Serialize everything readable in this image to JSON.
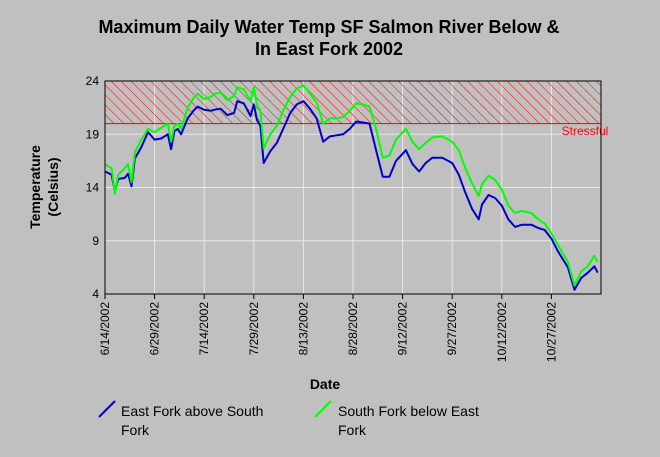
{
  "chart_data": {
    "type": "line",
    "title_line1": "Maximum Daily Water Temp SF Salmon River Below &",
    "title_line2": "In East Fork 2002",
    "xlabel": "Date",
    "ylabel_line1": "Temperature",
    "ylabel_line2": "(Celsius)",
    "ylim": [
      4,
      24
    ],
    "yticks": [
      4,
      9,
      14,
      19,
      24
    ],
    "xlim": [
      "2002-06-14",
      "2002-11-11"
    ],
    "xtick_labels": [
      "6/14/2002",
      "6/29/2002",
      "7/14/2002",
      "7/29/2002",
      "8/13/2002",
      "8/28/2002",
      "9/12/2002",
      "9/27/2002",
      "10/12/2002",
      "10/27/2002"
    ],
    "xtick_dates": [
      "2002-06-14",
      "2002-06-29",
      "2002-07-14",
      "2002-07-29",
      "2002-08-13",
      "2002-08-28",
      "2002-09-12",
      "2002-09-27",
      "2002-10-12",
      "2002-10-27"
    ],
    "grid": true,
    "legend_position": "bottom",
    "threshold": {
      "label": "Stressful",
      "from": 20,
      "to": 24,
      "color": "#ff0000"
    },
    "series": [
      {
        "name": "East Fork above South Fork",
        "color": "#0000cc",
        "values": [
          [
            "2002-06-14",
            15.5
          ],
          [
            "2002-06-16",
            15.2
          ],
          [
            "2002-06-17",
            13.6
          ],
          [
            "2002-06-18",
            14.8
          ],
          [
            "2002-06-20",
            14.9
          ],
          [
            "2002-06-21",
            15.3
          ],
          [
            "2002-06-22",
            14.1
          ],
          [
            "2002-06-23",
            16.7
          ],
          [
            "2002-06-25",
            17.8
          ],
          [
            "2002-06-27",
            19.2
          ],
          [
            "2002-06-29",
            18.5
          ],
          [
            "2002-07-01",
            18.6
          ],
          [
            "2002-07-03",
            19.0
          ],
          [
            "2002-07-04",
            17.6
          ],
          [
            "2002-07-05",
            19.3
          ],
          [
            "2002-07-06",
            19.5
          ],
          [
            "2002-07-07",
            19.0
          ],
          [
            "2002-07-09",
            20.5
          ],
          [
            "2002-07-11",
            21.3
          ],
          [
            "2002-07-12",
            21.6
          ],
          [
            "2002-07-14",
            21.3
          ],
          [
            "2002-07-16",
            21.2
          ],
          [
            "2002-07-17",
            21.3
          ],
          [
            "2002-07-19",
            21.4
          ],
          [
            "2002-07-21",
            20.8
          ],
          [
            "2002-07-23",
            21.0
          ],
          [
            "2002-07-24",
            22.1
          ],
          [
            "2002-07-26",
            21.9
          ],
          [
            "2002-07-28",
            20.7
          ],
          [
            "2002-07-29",
            21.8
          ],
          [
            "2002-07-30",
            20.3
          ],
          [
            "2002-07-31",
            19.8
          ],
          [
            "2002-08-01",
            16.3
          ],
          [
            "2002-08-03",
            17.4
          ],
          [
            "2002-08-05",
            18.2
          ],
          [
            "2002-08-07",
            19.6
          ],
          [
            "2002-08-09",
            21.0
          ],
          [
            "2002-08-11",
            21.8
          ],
          [
            "2002-08-13",
            22.1
          ],
          [
            "2002-08-15",
            21.4
          ],
          [
            "2002-08-17",
            20.5
          ],
          [
            "2002-08-19",
            18.3
          ],
          [
            "2002-08-21",
            18.8
          ],
          [
            "2002-08-23",
            18.9
          ],
          [
            "2002-08-25",
            19.0
          ],
          [
            "2002-08-27",
            19.5
          ],
          [
            "2002-08-29",
            20.2
          ],
          [
            "2002-08-31",
            20.1
          ],
          [
            "2002-09-02",
            20.0
          ],
          [
            "2002-09-04",
            17.5
          ],
          [
            "2002-09-06",
            15.0
          ],
          [
            "2002-09-08",
            15.0
          ],
          [
            "2002-09-10",
            16.5
          ],
          [
            "2002-09-13",
            17.5
          ],
          [
            "2002-09-15",
            16.2
          ],
          [
            "2002-09-17",
            15.5
          ],
          [
            "2002-09-19",
            16.3
          ],
          [
            "2002-09-21",
            16.8
          ],
          [
            "2002-09-24",
            16.8
          ],
          [
            "2002-09-27",
            16.3
          ],
          [
            "2002-09-29",
            15.2
          ],
          [
            "2002-10-01",
            13.5
          ],
          [
            "2002-10-03",
            12.0
          ],
          [
            "2002-10-05",
            11.0
          ],
          [
            "2002-10-06",
            12.4
          ],
          [
            "2002-10-08",
            13.3
          ],
          [
            "2002-10-10",
            13.0
          ],
          [
            "2002-10-12",
            12.3
          ],
          [
            "2002-10-14",
            11.0
          ],
          [
            "2002-10-16",
            10.3
          ],
          [
            "2002-10-18",
            10.5
          ],
          [
            "2002-10-21",
            10.5
          ],
          [
            "2002-10-23",
            10.2
          ],
          [
            "2002-10-25",
            10.0
          ],
          [
            "2002-10-27",
            9.2
          ],
          [
            "2002-10-29",
            8.0
          ],
          [
            "2002-11-01",
            6.5
          ],
          [
            "2002-11-03",
            4.4
          ],
          [
            "2002-11-05",
            5.5
          ],
          [
            "2002-11-07",
            6.0
          ],
          [
            "2002-11-09",
            6.6
          ],
          [
            "2002-11-10",
            6.0
          ]
        ]
      },
      {
        "name": "South Fork below East Fork",
        "color": "#00ff00",
        "values": [
          [
            "2002-06-14",
            16.2
          ],
          [
            "2002-06-16",
            15.8
          ],
          [
            "2002-06-17",
            13.4
          ],
          [
            "2002-06-18",
            15.2
          ],
          [
            "2002-06-20",
            15.8
          ],
          [
            "2002-06-21",
            16.2
          ],
          [
            "2002-06-22",
            14.5
          ],
          [
            "2002-06-23",
            17.3
          ],
          [
            "2002-06-25",
            18.5
          ],
          [
            "2002-06-27",
            19.5
          ],
          [
            "2002-06-29",
            19.2
          ],
          [
            "2002-07-01",
            19.6
          ],
          [
            "2002-07-03",
            20.0
          ],
          [
            "2002-07-04",
            18.3
          ],
          [
            "2002-07-05",
            19.8
          ],
          [
            "2002-07-06",
            20.0
          ],
          [
            "2002-07-07",
            19.5
          ],
          [
            "2002-07-09",
            21.5
          ],
          [
            "2002-07-11",
            22.5
          ],
          [
            "2002-07-12",
            22.8
          ],
          [
            "2002-07-14",
            22.3
          ],
          [
            "2002-07-16",
            22.5
          ],
          [
            "2002-07-17",
            22.8
          ],
          [
            "2002-07-19",
            22.9
          ],
          [
            "2002-07-21",
            22.2
          ],
          [
            "2002-07-23",
            22.6
          ],
          [
            "2002-07-24",
            23.4
          ],
          [
            "2002-07-26",
            23.2
          ],
          [
            "2002-07-28",
            22.1
          ],
          [
            "2002-07-29",
            23.4
          ],
          [
            "2002-07-30",
            21.7
          ],
          [
            "2002-07-31",
            21.2
          ],
          [
            "2002-08-01",
            17.7
          ],
          [
            "2002-08-03",
            19.0
          ],
          [
            "2002-08-05",
            19.8
          ],
          [
            "2002-08-07",
            21.3
          ],
          [
            "2002-08-09",
            22.5
          ],
          [
            "2002-08-11",
            23.3
          ],
          [
            "2002-08-13",
            23.6
          ],
          [
            "2002-08-15",
            22.8
          ],
          [
            "2002-08-17",
            22.0
          ],
          [
            "2002-08-19",
            20.0
          ],
          [
            "2002-08-21",
            20.5
          ],
          [
            "2002-08-23",
            20.5
          ],
          [
            "2002-08-25",
            20.6
          ],
          [
            "2002-08-27",
            21.2
          ],
          [
            "2002-08-29",
            21.9
          ],
          [
            "2002-08-31",
            21.8
          ],
          [
            "2002-09-02",
            21.6
          ],
          [
            "2002-09-04",
            19.5
          ],
          [
            "2002-09-06",
            16.8
          ],
          [
            "2002-09-08",
            17.0
          ],
          [
            "2002-09-10",
            18.5
          ],
          [
            "2002-09-13",
            19.5
          ],
          [
            "2002-09-15",
            18.3
          ],
          [
            "2002-09-17",
            17.6
          ],
          [
            "2002-09-19",
            18.2
          ],
          [
            "2002-09-21",
            18.7
          ],
          [
            "2002-09-24",
            18.8
          ],
          [
            "2002-09-27",
            18.3
          ],
          [
            "2002-09-29",
            17.5
          ],
          [
            "2002-10-01",
            15.8
          ],
          [
            "2002-10-03",
            14.4
          ],
          [
            "2002-10-05",
            13.2
          ],
          [
            "2002-10-06",
            14.3
          ],
          [
            "2002-10-08",
            15.1
          ],
          [
            "2002-10-10",
            14.7
          ],
          [
            "2002-10-12",
            13.8
          ],
          [
            "2002-10-14",
            12.3
          ],
          [
            "2002-10-16",
            11.6
          ],
          [
            "2002-10-18",
            11.8
          ],
          [
            "2002-10-21",
            11.6
          ],
          [
            "2002-10-23",
            11.0
          ],
          [
            "2002-10-25",
            10.6
          ],
          [
            "2002-10-27",
            9.7
          ],
          [
            "2002-10-29",
            8.6
          ],
          [
            "2002-11-01",
            7.0
          ],
          [
            "2002-11-03",
            4.8
          ],
          [
            "2002-11-05",
            6.1
          ],
          [
            "2002-11-07",
            6.6
          ],
          [
            "2002-11-09",
            7.6
          ],
          [
            "2002-11-10",
            7.0
          ]
        ]
      }
    ]
  }
}
